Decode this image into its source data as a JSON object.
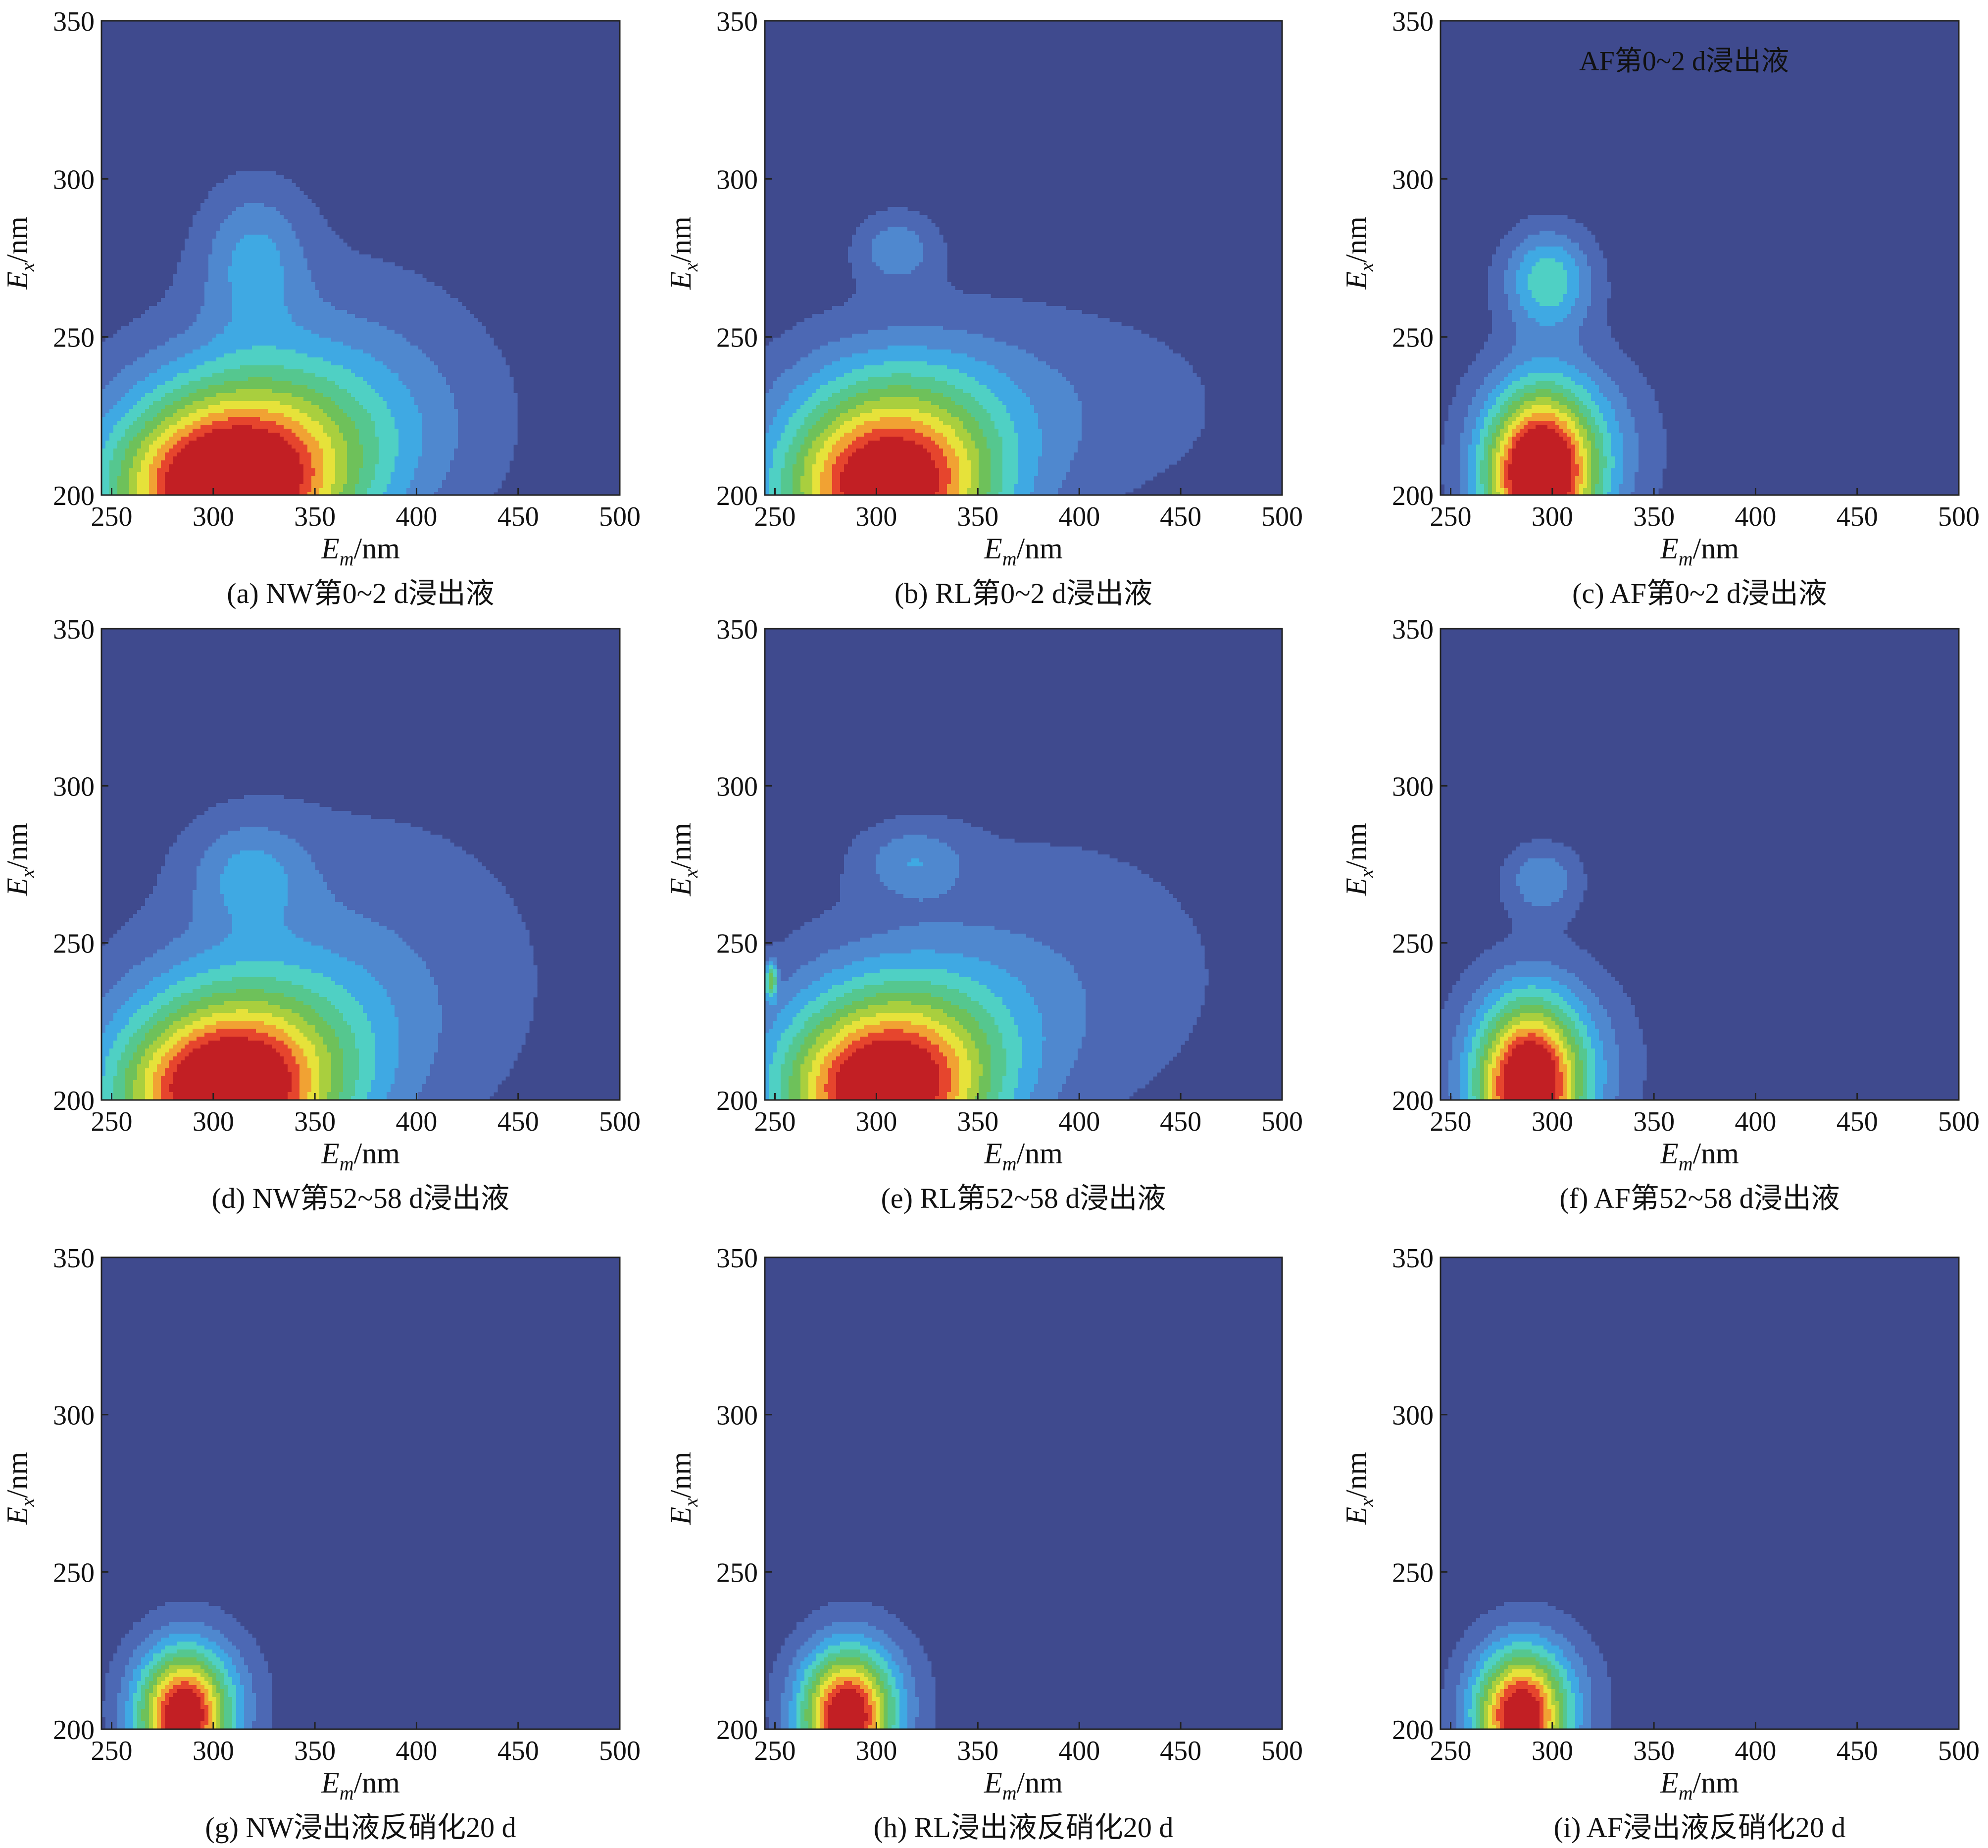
{
  "figure": {
    "colors": {
      "background": "#3f4a8e",
      "contour_scale": [
        "#4c68b4",
        "#4f88cf",
        "#3fa9e3",
        "#4fd0c4",
        "#55c78f",
        "#6ec15a",
        "#a9cf3e",
        "#e6e23a",
        "#f1a233",
        "#e6452d",
        "#c21f24"
      ]
    }
  },
  "chart_data": [
    {
      "type": "heatmap",
      "caption": "(a) NW第0~2 d浸出液",
      "xlabel": "E_m/nm",
      "ylabel": "E_x/nm",
      "xlim": [
        245,
        500
      ],
      "ylim": [
        200,
        350
      ],
      "xticks": [
        250,
        300,
        350,
        400,
        450,
        500
      ],
      "yticks": [
        200,
        250,
        300,
        350
      ],
      "annotation": "",
      "peaks": [
        {
          "em": 305,
          "ex": 200,
          "intensity": 1.0,
          "sigma_em": 38,
          "sigma_ex": 19
        },
        {
          "em": 330,
          "ex": 220,
          "intensity": 0.33,
          "sigma_em": 50,
          "sigma_ex": 20
        },
        {
          "em": 320,
          "ex": 275,
          "intensity": 0.22,
          "sigma_em": 18,
          "sigma_ex": 16
        },
        {
          "em": 360,
          "ex": 230,
          "intensity": 0.13,
          "sigma_em": 60,
          "sigma_ex": 35
        }
      ]
    },
    {
      "type": "heatmap",
      "caption": "(b) RL第0~2 d浸出液",
      "xlabel": "E_m/nm",
      "ylabel": "E_x/nm",
      "xlim": [
        245,
        500
      ],
      "ylim": [
        200,
        350
      ],
      "xticks": [
        250,
        300,
        350,
        400,
        450,
        500
      ],
      "yticks": [
        200,
        250,
        300,
        350
      ],
      "annotation": "",
      "peaks": [
        {
          "em": 305,
          "ex": 200,
          "intensity": 0.95,
          "sigma_em": 36,
          "sigma_ex": 18
        },
        {
          "em": 310,
          "ex": 225,
          "intensity": 0.3,
          "sigma_em": 40,
          "sigma_ex": 18
        },
        {
          "em": 310,
          "ex": 278,
          "intensity": 0.2,
          "sigma_em": 14,
          "sigma_ex": 8
        },
        {
          "em": 380,
          "ex": 228,
          "intensity": 0.12,
          "sigma_em": 70,
          "sigma_ex": 25
        }
      ]
    },
    {
      "type": "heatmap",
      "caption": "(c) AF第0~2 d浸出液",
      "xlabel": "E_m/nm",
      "ylabel": "E_x/nm",
      "xlim": [
        245,
        500
      ],
      "ylim": [
        200,
        350
      ],
      "xticks": [
        250,
        300,
        350,
        400,
        450,
        500
      ],
      "yticks": [
        200,
        250,
        300,
        350
      ],
      "annotation": "AF第0~2 d浸出液",
      "peaks": [
        {
          "em": 293,
          "ex": 205,
          "intensity": 1.0,
          "sigma_em": 18,
          "sigma_ex": 18
        },
        {
          "em": 298,
          "ex": 268,
          "intensity": 0.38,
          "sigma_em": 15,
          "sigma_ex": 11
        },
        {
          "em": 305,
          "ex": 215,
          "intensity": 0.3,
          "sigma_em": 28,
          "sigma_ex": 20
        }
      ]
    },
    {
      "type": "heatmap",
      "caption": "(d) NW第52~58 d浸出液",
      "xlabel": "E_m/nm",
      "ylabel": "E_x/nm",
      "xlim": [
        245,
        500
      ],
      "ylim": [
        200,
        350
      ],
      "xticks": [
        250,
        300,
        350,
        400,
        450,
        500
      ],
      "yticks": [
        200,
        250,
        300,
        350
      ],
      "annotation": "",
      "peaks": [
        {
          "em": 305,
          "ex": 200,
          "intensity": 0.95,
          "sigma_em": 36,
          "sigma_ex": 18
        },
        {
          "em": 320,
          "ex": 220,
          "intensity": 0.33,
          "sigma_em": 45,
          "sigma_ex": 20
        },
        {
          "em": 318,
          "ex": 272,
          "intensity": 0.2,
          "sigma_em": 20,
          "sigma_ex": 12
        },
        {
          "em": 370,
          "ex": 240,
          "intensity": 0.13,
          "sigma_em": 70,
          "sigma_ex": 40
        }
      ]
    },
    {
      "type": "heatmap",
      "caption": "(e) RL第52~58 d浸出液",
      "xlabel": "E_m/nm",
      "ylabel": "E_x/nm",
      "xlim": [
        245,
        500
      ],
      "ylim": [
        200,
        350
      ],
      "xticks": [
        250,
        300,
        350,
        400,
        450,
        500
      ],
      "yticks": [
        200,
        250,
        300,
        350
      ],
      "annotation": "",
      "peaks": [
        {
          "em": 303,
          "ex": 200,
          "intensity": 0.95,
          "sigma_em": 35,
          "sigma_ex": 18
        },
        {
          "em": 315,
          "ex": 222,
          "intensity": 0.33,
          "sigma_em": 42,
          "sigma_ex": 18
        },
        {
          "em": 318,
          "ex": 276,
          "intensity": 0.18,
          "sigma_em": 18,
          "sigma_ex": 8
        },
        {
          "em": 380,
          "ex": 240,
          "intensity": 0.12,
          "sigma_em": 70,
          "sigma_ex": 35
        },
        {
          "em": 248,
          "ex": 238,
          "intensity": 0.45,
          "sigma_em": 2,
          "sigma_ex": 4
        }
      ]
    },
    {
      "type": "heatmap",
      "caption": "(f) AF第52~58 d浸出液",
      "xlabel": "E_m/nm",
      "ylabel": "E_x/nm",
      "xlim": [
        245,
        500
      ],
      "ylim": [
        200,
        350
      ],
      "xticks": [
        250,
        300,
        350,
        400,
        450,
        500
      ],
      "yticks": [
        200,
        250,
        300,
        350
      ],
      "annotation": "",
      "peaks": [
        {
          "em": 288,
          "ex": 203,
          "intensity": 0.92,
          "sigma_em": 17,
          "sigma_ex": 18
        },
        {
          "em": 295,
          "ex": 212,
          "intensity": 0.3,
          "sigma_em": 28,
          "sigma_ex": 20
        },
        {
          "em": 295,
          "ex": 270,
          "intensity": 0.22,
          "sigma_em": 13,
          "sigma_ex": 8
        }
      ]
    },
    {
      "type": "heatmap",
      "caption": "(g) NW浸出液反硝化20 d",
      "xlabel": "E_m/nm",
      "ylabel": "E_x/nm",
      "xlim": [
        245,
        500
      ],
      "ylim": [
        200,
        350
      ],
      "xticks": [
        250,
        300,
        350,
        400,
        450,
        500
      ],
      "yticks": [
        200,
        250,
        300,
        350
      ],
      "annotation": "",
      "peaks": [
        {
          "em": 285,
          "ex": 203,
          "intensity": 0.85,
          "sigma_em": 15,
          "sigma_ex": 14
        },
        {
          "em": 290,
          "ex": 210,
          "intensity": 0.25,
          "sigma_em": 22,
          "sigma_ex": 16
        }
      ]
    },
    {
      "type": "heatmap",
      "caption": "(h) RL浸出液反硝化20 d",
      "xlabel": "E_m/nm",
      "ylabel": "E_x/nm",
      "xlim": [
        245,
        500
      ],
      "ylim": [
        200,
        350
      ],
      "xticks": [
        250,
        300,
        350,
        400,
        450,
        500
      ],
      "yticks": [
        200,
        250,
        300,
        350
      ],
      "annotation": "",
      "peaks": [
        {
          "em": 285,
          "ex": 203,
          "intensity": 0.85,
          "sigma_em": 15,
          "sigma_ex": 14
        },
        {
          "em": 290,
          "ex": 210,
          "intensity": 0.25,
          "sigma_em": 22,
          "sigma_ex": 16
        }
      ]
    },
    {
      "type": "heatmap",
      "caption": "(i) AF浸出液反硝化20 d",
      "xlabel": "E_m/nm",
      "ylabel": "E_x/nm",
      "xlim": [
        245,
        500
      ],
      "ylim": [
        200,
        350
      ],
      "xticks": [
        250,
        300,
        350,
        400,
        450,
        500
      ],
      "yticks": [
        200,
        250,
        300,
        350
      ],
      "annotation": "",
      "peaks": [
        {
          "em": 284,
          "ex": 203,
          "intensity": 0.85,
          "sigma_em": 15,
          "sigma_ex": 14
        },
        {
          "em": 290,
          "ex": 210,
          "intensity": 0.25,
          "sigma_em": 22,
          "sigma_ex": 16
        }
      ]
    }
  ]
}
